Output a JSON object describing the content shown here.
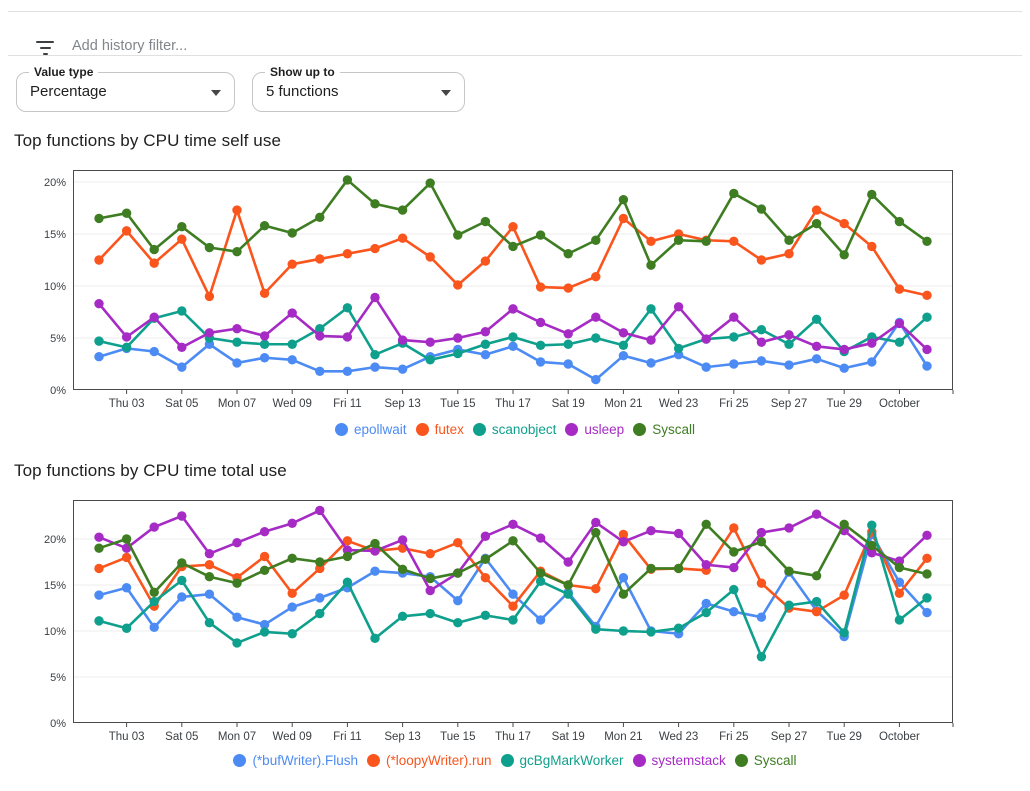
{
  "filter_bar": {
    "icon": "filter-list-icon",
    "placeholder": "Add history filter..."
  },
  "controls": [
    {
      "label": "Value type",
      "value": "Percentage"
    },
    {
      "label": "Show up to",
      "value": "5 functions"
    }
  ],
  "chart_data": [
    {
      "type": "line",
      "title": "Top functions by CPU time self use",
      "xlabel": "",
      "ylabel": "",
      "y_tick_format": "percent",
      "yticks": [
        0,
        5,
        10,
        15,
        20
      ],
      "ylim": [
        0,
        21.2
      ],
      "grid": true,
      "legend_position": "bottom",
      "categories": [
        "Sep 02",
        "Sep 03",
        "Sep 04",
        "Sep 05",
        "Sep 06",
        "Sep 07",
        "Sep 08",
        "Sep 09",
        "Sep 10",
        "Sep 11",
        "Sep 12",
        "Sep 13",
        "Sep 14",
        "Sep 15",
        "Sep 16",
        "Sep 17",
        "Sep 18",
        "Sep 19",
        "Sep 20",
        "Sep 21",
        "Sep 22",
        "Sep 23",
        "Sep 24",
        "Sep 25",
        "Sep 26",
        "Sep 27",
        "Sep 28",
        "Sep 29",
        "Sep 30",
        "Oct 01",
        "Oct 02"
      ],
      "tick_indices": [
        1,
        3,
        5,
        7,
        9,
        11,
        13,
        15,
        17,
        19,
        21,
        23,
        25,
        27,
        29
      ],
      "tick_labels": [
        "Thu 03",
        "Sat 05",
        "Mon 07",
        "Wed 09",
        "Fri 11",
        "Sep 13",
        "Tue 15",
        "Thu 17",
        "Sat 19",
        "Mon 21",
        "Wed 23",
        "Fri 25",
        "Sep 27",
        "Tue 29",
        "October"
      ],
      "series": [
        {
          "name": "epollwait",
          "color": "#4c8bf4",
          "values": [
            3.2,
            4.0,
            3.7,
            2.2,
            4.4,
            2.6,
            3.1,
            2.9,
            1.8,
            1.8,
            2.2,
            2.0,
            3.2,
            3.9,
            3.4,
            4.2,
            2.7,
            2.5,
            1.0,
            3.3,
            2.6,
            3.4,
            2.2,
            2.5,
            2.8,
            2.4,
            3.0,
            2.1,
            2.7,
            6.5,
            2.3
          ]
        },
        {
          "name": "futex",
          "color": "#fa551d",
          "values": [
            12.5,
            15.3,
            12.2,
            14.5,
            9.0,
            17.3,
            9.3,
            12.1,
            12.6,
            13.1,
            13.6,
            14.6,
            12.8,
            10.1,
            12.4,
            15.7,
            9.9,
            9.8,
            10.9,
            16.5,
            14.3,
            15.0,
            14.4,
            14.3,
            12.5,
            13.1,
            17.3,
            16.0,
            13.8,
            9.7,
            9.1
          ]
        },
        {
          "name": "scanobject",
          "color": "#0fa08d",
          "values": [
            4.7,
            4.1,
            6.9,
            7.6,
            5.0,
            4.6,
            4.4,
            4.4,
            5.9,
            7.9,
            3.4,
            4.5,
            2.9,
            3.5,
            4.4,
            5.1,
            4.3,
            4.4,
            5.0,
            4.3,
            7.8,
            4.0,
            4.9,
            5.1,
            5.8,
            4.4,
            6.8,
            3.7,
            5.1,
            4.6,
            7.0
          ]
        },
        {
          "name": "usleep",
          "color": "#a62bc5",
          "values": [
            8.3,
            5.1,
            7.0,
            4.1,
            5.5,
            5.9,
            5.2,
            7.4,
            5.2,
            5.1,
            8.9,
            4.8,
            4.6,
            5.0,
            5.6,
            7.8,
            6.5,
            5.4,
            7.0,
            5.5,
            4.8,
            8.0,
            4.9,
            7.0,
            4.6,
            5.3,
            4.2,
            3.9,
            4.5,
            6.4,
            3.9
          ]
        },
        {
          "name": "Syscall",
          "color": "#3e7d22",
          "values": [
            16.5,
            17.0,
            13.5,
            15.7,
            13.7,
            13.3,
            15.8,
            15.1,
            16.6,
            20.2,
            17.9,
            17.3,
            19.9,
            14.9,
            16.2,
            13.8,
            14.9,
            13.1,
            14.4,
            18.3,
            12.0,
            14.4,
            14.3,
            18.9,
            17.4,
            14.4,
            16.0,
            13.0,
            18.8,
            16.2,
            14.3
          ]
        }
      ]
    },
    {
      "type": "line",
      "title": "Top functions by CPU time total use",
      "xlabel": "",
      "ylabel": "",
      "y_tick_format": "percent",
      "yticks": [
        0,
        5,
        10,
        15,
        20
      ],
      "ylim": [
        0,
        24.3
      ],
      "grid": true,
      "legend_position": "bottom",
      "categories": [
        "Sep 02",
        "Sep 03",
        "Sep 04",
        "Sep 05",
        "Sep 06",
        "Sep 07",
        "Sep 08",
        "Sep 09",
        "Sep 10",
        "Sep 11",
        "Sep 12",
        "Sep 13",
        "Sep 14",
        "Sep 15",
        "Sep 16",
        "Sep 17",
        "Sep 18",
        "Sep 19",
        "Sep 20",
        "Sep 21",
        "Sep 22",
        "Sep 23",
        "Sep 24",
        "Sep 25",
        "Sep 26",
        "Sep 27",
        "Sep 28",
        "Sep 29",
        "Sep 30",
        "Oct 01",
        "Oct 02"
      ],
      "tick_indices": [
        1,
        3,
        5,
        7,
        9,
        11,
        13,
        15,
        17,
        19,
        21,
        23,
        25,
        27,
        29
      ],
      "tick_labels": [
        "Thu 03",
        "Sat 05",
        "Mon 07",
        "Wed 09",
        "Fri 11",
        "Sep 13",
        "Tue 15",
        "Thu 17",
        "Sat 19",
        "Mon 21",
        "Wed 23",
        "Fri 25",
        "Sep 27",
        "Tue 29",
        "October"
      ],
      "series": [
        {
          "name": "(*bufWriter).Flush",
          "color": "#4c8bf4",
          "values": [
            13.9,
            14.7,
            10.4,
            13.7,
            14.0,
            11.5,
            10.7,
            12.6,
            13.6,
            14.7,
            16.5,
            16.3,
            15.9,
            13.3,
            17.9,
            14.0,
            11.2,
            14.2,
            10.5,
            15.8,
            10.0,
            9.7,
            13.0,
            12.1,
            11.5,
            16.4,
            12.2,
            9.4,
            20.5,
            15.3,
            12.0
          ]
        },
        {
          "name": "(*loopyWriter).run",
          "color": "#fa551d",
          "values": [
            16.8,
            18.0,
            12.7,
            17.0,
            17.2,
            15.8,
            18.1,
            14.1,
            16.8,
            19.8,
            18.7,
            19.0,
            18.4,
            19.6,
            15.8,
            12.7,
            16.5,
            15.0,
            14.6,
            20.5,
            16.7,
            16.8,
            16.6,
            21.2,
            15.2,
            12.5,
            12.1,
            13.9,
            20.8,
            14.1,
            17.9
          ]
        },
        {
          "name": "gcBgMarkWorker",
          "color": "#0fa08d",
          "values": [
            11.1,
            10.3,
            13.2,
            15.5,
            10.9,
            8.7,
            9.9,
            9.7,
            11.9,
            15.3,
            9.2,
            11.6,
            11.9,
            10.9,
            11.7,
            11.2,
            15.4,
            14.0,
            10.2,
            10.0,
            9.9,
            10.3,
            12.0,
            14.5,
            7.2,
            12.8,
            13.2,
            9.8,
            21.5,
            11.2,
            13.6
          ]
        },
        {
          "name": "systemstack",
          "color": "#a62bc5",
          "values": [
            20.2,
            19.0,
            21.3,
            22.5,
            18.4,
            19.6,
            20.8,
            21.7,
            23.1,
            18.8,
            18.7,
            19.9,
            14.4,
            16.3,
            20.3,
            21.6,
            20.1,
            17.5,
            21.8,
            19.7,
            20.9,
            20.6,
            17.2,
            16.9,
            20.7,
            21.2,
            22.7,
            20.9,
            18.5,
            17.6,
            20.4
          ]
        },
        {
          "name": "Syscall",
          "color": "#3e7d22",
          "values": [
            19.0,
            20.0,
            14.2,
            17.4,
            15.9,
            15.2,
            16.6,
            17.9,
            17.5,
            18.1,
            19.5,
            16.7,
            15.7,
            16.3,
            17.8,
            19.8,
            16.3,
            15.0,
            20.7,
            14.0,
            16.8,
            16.8,
            21.6,
            18.6,
            19.7,
            16.5,
            16.0,
            21.6,
            19.3,
            16.9,
            16.2
          ]
        }
      ]
    }
  ]
}
